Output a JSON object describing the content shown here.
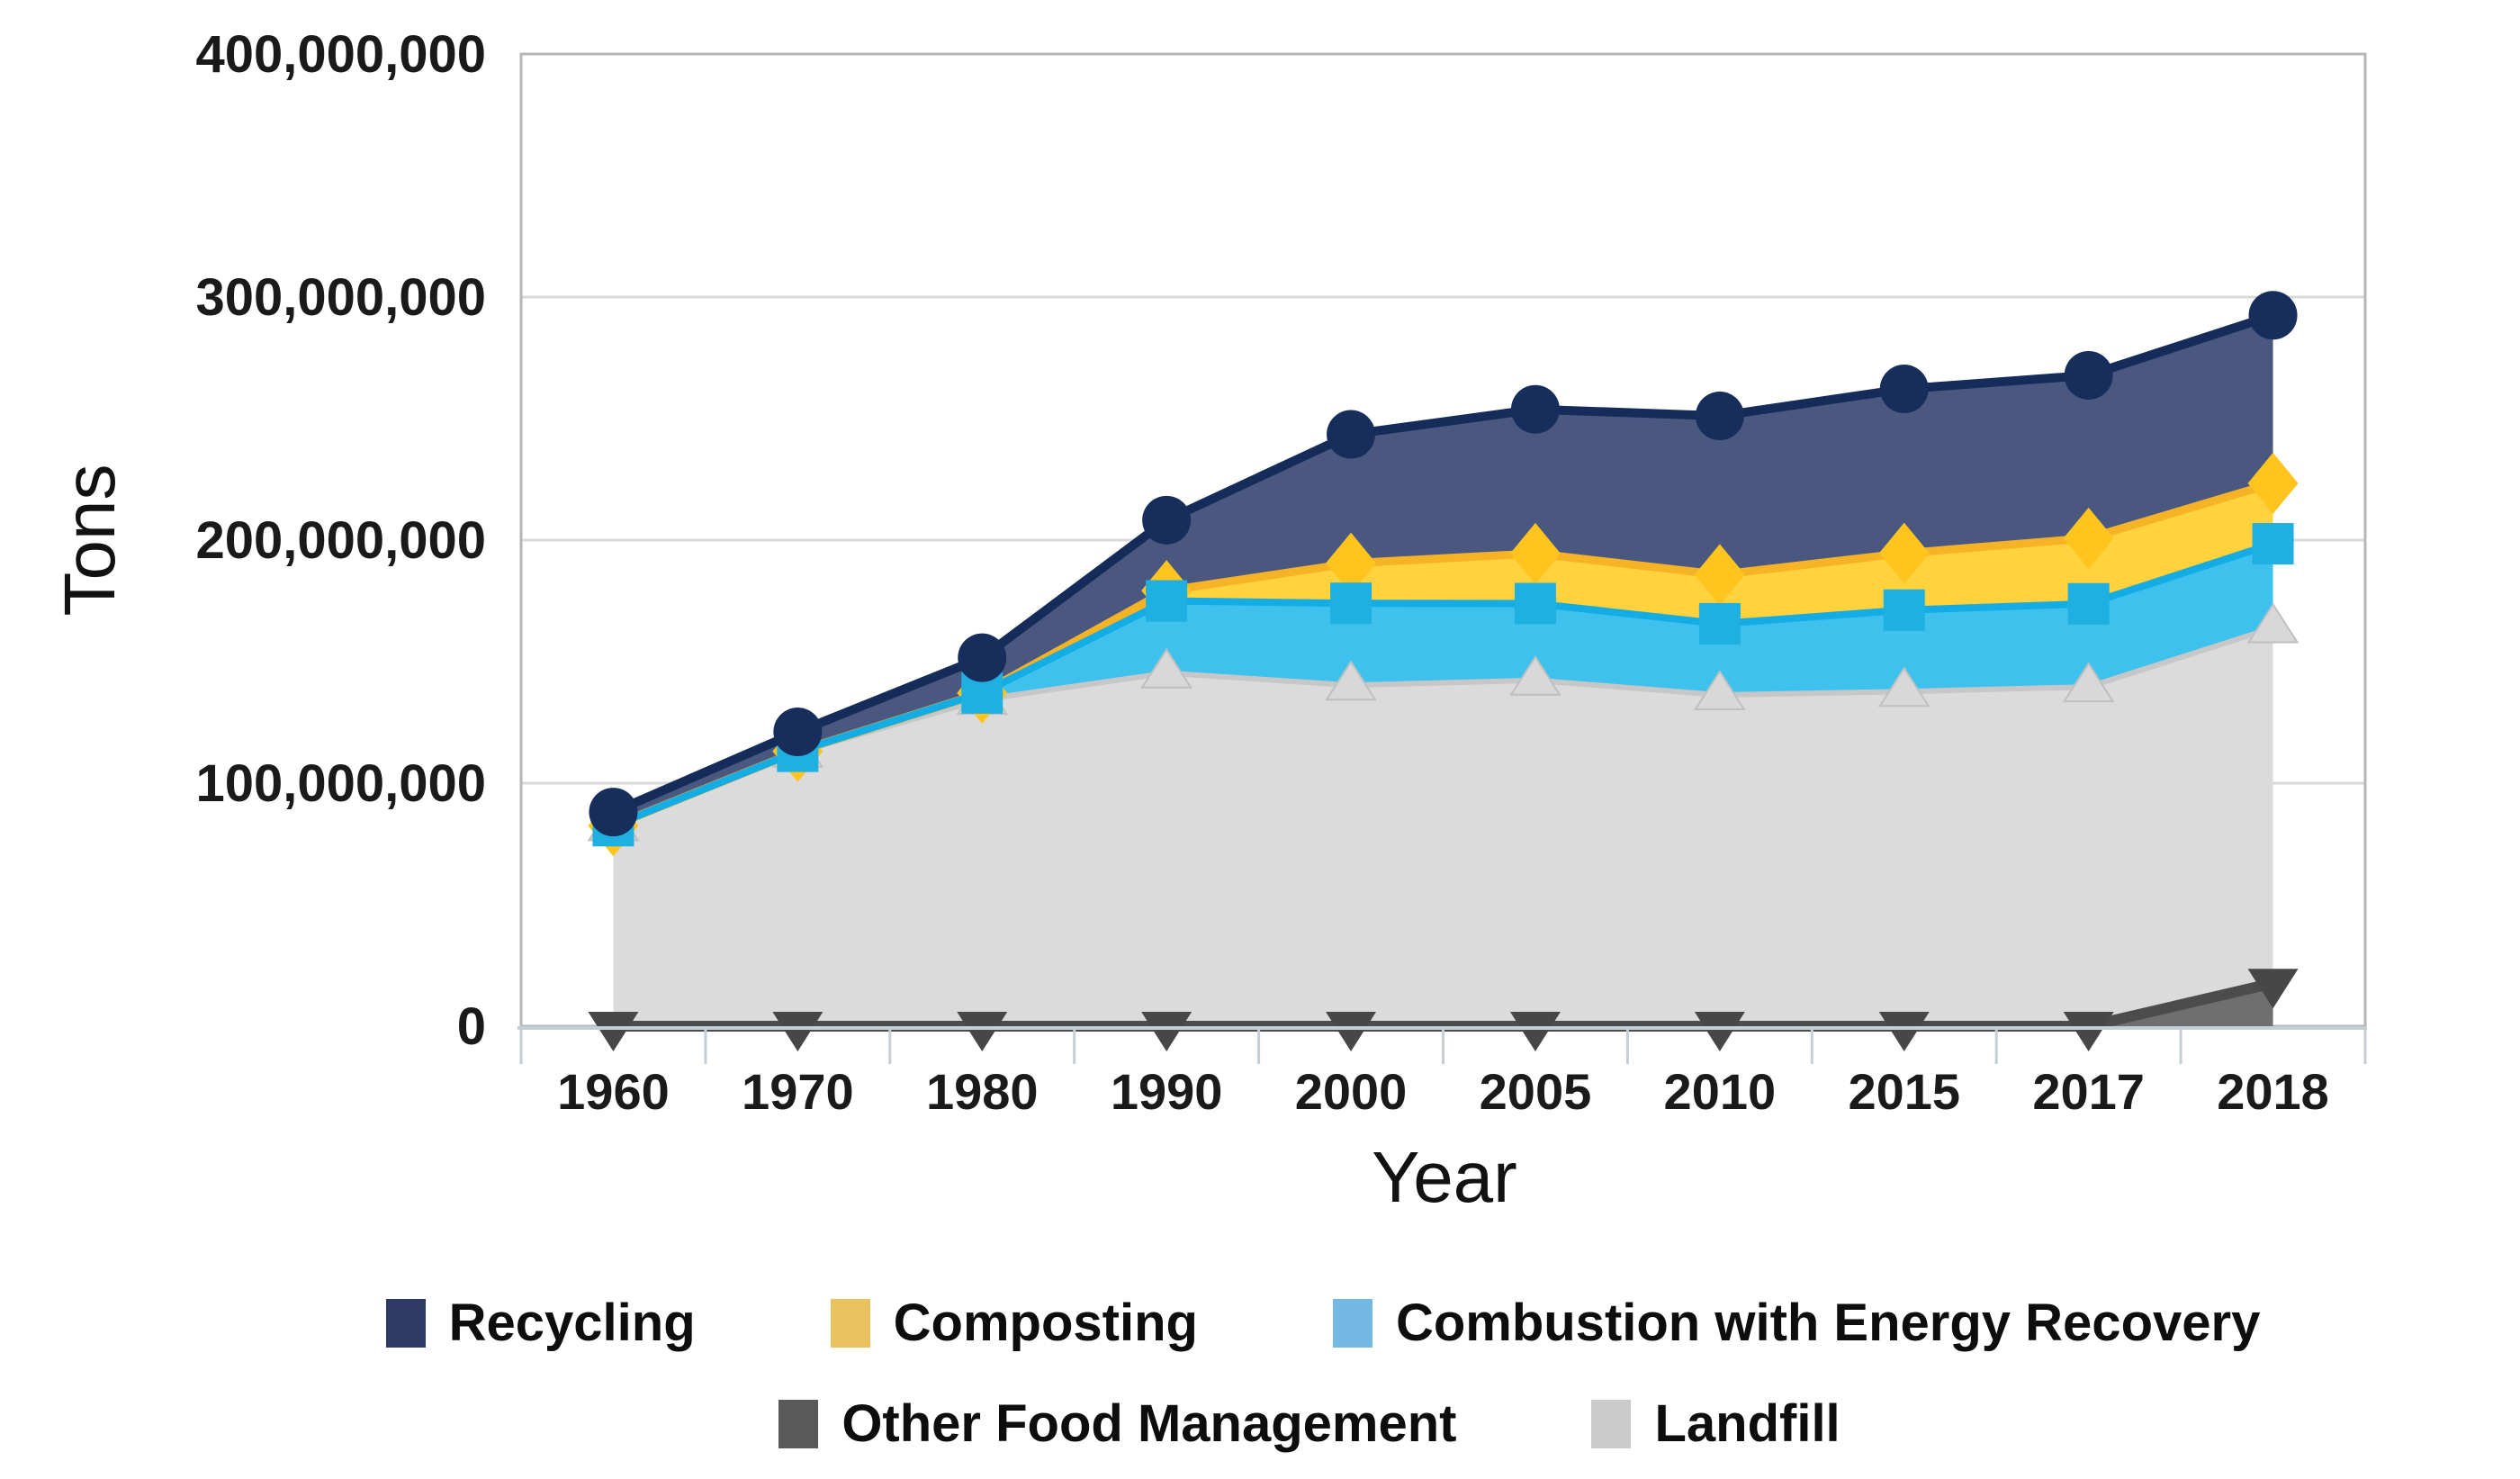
{
  "chart_data": {
    "type": "area",
    "stacked": true,
    "title": "",
    "xlabel": "Year",
    "ylabel": "Tons",
    "grid": "horizontal",
    "legend_position": "bottom",
    "categories": [
      "1960",
      "1970",
      "1980",
      "1990",
      "2000",
      "2005",
      "2010",
      "2015",
      "2017",
      "2018"
    ],
    "y_axis": {
      "min": 0,
      "max": 400000000,
      "tick_interval": 100000000,
      "tick_labels": [
        "0",
        "100,000,000",
        "200,000,000",
        "300,000,000",
        "400,000,000"
      ]
    },
    "series": [
      {
        "name": "Other Food Management",
        "values": [
          0,
          0,
          0,
          0,
          0,
          0,
          0,
          0,
          0,
          17700000
        ],
        "area_color": "#6f6f6f",
        "line_color": "#4c4c4c",
        "marker_color": "#474747",
        "marker": "triangle-down",
        "legend_color": "#595959"
      },
      {
        "name": "Landfill",
        "values": [
          82500000,
          112700000,
          134400000,
          145300000,
          140300000,
          142300000,
          136300000,
          137700000,
          139600000,
          146200000
        ],
        "area_color": "#dbdbdb",
        "line_color": "#c7c7c7",
        "marker_color": "#d8d8d8",
        "marker": "triangle-up",
        "legend_color": "#cbcbcb"
      },
      {
        "name": "Combustion with Energy Recovery",
        "values": [
          0,
          400000,
          2700000,
          29700000,
          33700000,
          31600000,
          29300000,
          33500000,
          34200000,
          34600000
        ],
        "area_color": "#3fc1ee",
        "line_color": "#14ace4",
        "marker_color": "#1fb0e2",
        "marker": "square",
        "legend_color": "#74b8e4"
      },
      {
        "name": "Composting",
        "values": [
          0,
          0,
          0,
          4200000,
          16500000,
          20600000,
          20200000,
          23400000,
          27000000,
          24900000
        ],
        "area_color": "#ffd23e",
        "line_color": "#f5b325",
        "marker_color": "#ffc41e",
        "marker": "diamond",
        "legend_color": "#e9c25f"
      },
      {
        "name": "Recycling",
        "values": [
          5600000,
          8000000,
          14500000,
          29000000,
          53000000,
          59300000,
          65300000,
          67600000,
          67000000,
          69100000
        ],
        "area_color": "#4a5880",
        "line_color": "#152c5b",
        "marker_color": "#172e5d",
        "marker": "circle",
        "legend_color": "#2e3a64"
      }
    ],
    "legend_rows": [
      [
        "Recycling",
        "Composting",
        "Combustion with Energy Recovery"
      ],
      [
        "Other Food Management",
        "Landfill"
      ]
    ]
  },
  "colors": {
    "grid": "#d9d9d9",
    "frame": "#b6b6b6",
    "axis_line": "#c4ced6",
    "background": "#ffffff"
  }
}
